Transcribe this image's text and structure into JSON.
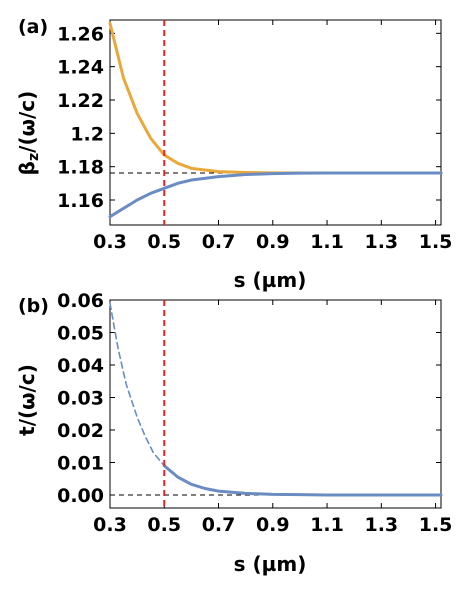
{
  "chart_data": [
    {
      "panel_label": "(a)",
      "type": "line",
      "xlabel": "s (µm)",
      "ylabel": "β_z/(ω/c)",
      "ylabel_main": "β",
      "ylabel_sub": "z",
      "ylabel_tail": "/(ω/c)",
      "xlim": [
        0.3,
        1.52
      ],
      "ylim": [
        1.145,
        1.268
      ],
      "x_ticks": [
        0.3,
        0.5,
        0.7,
        0.9,
        1.1,
        1.3,
        1.5
      ],
      "x_tick_labels": [
        "0.3",
        "0.5",
        "0.7",
        "0.9",
        "1.1",
        "1.3",
        "1.5"
      ],
      "y_ticks": [
        1.16,
        1.18,
        1.2,
        1.22,
        1.24,
        1.26
      ],
      "y_tick_labels": [
        "1.16",
        "1.18",
        "1.2",
        "1.22",
        "1.24",
        "1.26"
      ],
      "grid": false,
      "series": [
        {
          "color": "#E8A93A",
          "style": "solid",
          "x": [
            0.3,
            0.35,
            0.4,
            0.45,
            0.5,
            0.55,
            0.6,
            0.7,
            0.8,
            0.9,
            1.0,
            1.1,
            1.2,
            1.3,
            1.4,
            1.52
          ],
          "y": [
            1.266,
            1.233,
            1.212,
            1.197,
            1.187,
            1.182,
            1.179,
            1.177,
            1.1765,
            1.1763,
            1.1762,
            1.1762,
            1.1762,
            1.1762,
            1.1762,
            1.1762
          ]
        },
        {
          "color": "#6A8CC3",
          "style": "solid",
          "x": [
            0.3,
            0.35,
            0.4,
            0.45,
            0.5,
            0.55,
            0.6,
            0.7,
            0.8,
            0.9,
            1.0,
            1.1,
            1.2,
            1.3,
            1.4,
            1.52
          ],
          "y": [
            1.15,
            1.155,
            1.16,
            1.164,
            1.167,
            1.17,
            1.172,
            1.174,
            1.1753,
            1.1758,
            1.1761,
            1.1762,
            1.1762,
            1.1762,
            1.1762,
            1.1762
          ]
        }
      ],
      "hlines": [
        {
          "y": 1.1762,
          "color": "#000000",
          "style": "dashed"
        }
      ],
      "vlines": [
        {
          "x": 0.5,
          "color": "#E8232A",
          "style": "dashed"
        }
      ]
    },
    {
      "panel_label": "(b)",
      "type": "line",
      "xlabel": "s (µm)",
      "ylabel": "t/(ω/c)",
      "xlim": [
        0.3,
        1.52
      ],
      "ylim": [
        -0.004,
        0.06
      ],
      "x_ticks": [
        0.3,
        0.5,
        0.7,
        0.9,
        1.1,
        1.3,
        1.5
      ],
      "x_tick_labels": [
        "0.3",
        "0.5",
        "0.7",
        "0.9",
        "1.1",
        "1.3",
        "1.5"
      ],
      "y_ticks": [
        0.0,
        0.01,
        0.02,
        0.03,
        0.04,
        0.05,
        0.06
      ],
      "y_tick_labels": [
        "0.00",
        "0.01",
        "0.02",
        "0.03",
        "0.04",
        "0.05",
        "0.06"
      ],
      "grid": false,
      "series": [
        {
          "color": "#6A8CC3",
          "style": "dashed",
          "x": [
            0.3,
            0.33,
            0.36,
            0.4,
            0.43,
            0.46,
            0.5
          ],
          "y": [
            0.059,
            0.045,
            0.034,
            0.024,
            0.018,
            0.013,
            0.009
          ]
        },
        {
          "color": "#6A8CC3",
          "style": "solid",
          "x": [
            0.5,
            0.55,
            0.6,
            0.65,
            0.7,
            0.8,
            0.9,
            1.0,
            1.1,
            1.2,
            1.3,
            1.4,
            1.52
          ],
          "y": [
            0.009,
            0.0055,
            0.0033,
            0.002,
            0.0012,
            0.0005,
            0.0002,
            0.0001,
            0.0,
            0.0,
            0.0,
            0.0,
            0.0
          ]
        }
      ],
      "hlines": [
        {
          "y": 0.0,
          "color": "#000000",
          "style": "dashed"
        }
      ],
      "vlines": [
        {
          "x": 0.5,
          "color": "#E8232A",
          "style": "dashed"
        }
      ]
    }
  ]
}
